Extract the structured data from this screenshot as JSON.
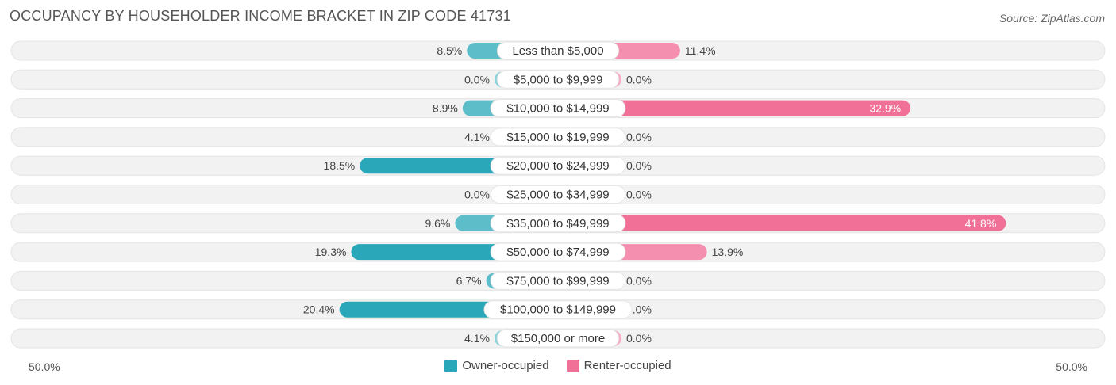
{
  "title": "OCCUPANCY BY HOUSEHOLDER INCOME BRACKET IN ZIP CODE 41731",
  "source": "Source: ZipAtlas.com",
  "colors": {
    "owner_strong": "#2aa7b8",
    "owner_light": "#8ed2da",
    "renter_strong": "#f07098",
    "renter_light": "#f6aec6",
    "track": "#f2f2f2"
  },
  "chart_data": {
    "type": "bar",
    "orientation": "horizontal-diverging",
    "categories": [
      "Less than $5,000",
      "$5,000 to $9,999",
      "$10,000 to $14,999",
      "$15,000 to $19,999",
      "$20,000 to $24,999",
      "$25,000 to $34,999",
      "$35,000 to $49,999",
      "$50,000 to $74,999",
      "$75,000 to $99,999",
      "$100,000 to $149,999",
      "$150,000 or more"
    ],
    "series": [
      {
        "name": "Owner-occupied",
        "values": [
          8.5,
          0.0,
          8.9,
          4.1,
          18.5,
          0.0,
          9.6,
          19.3,
          6.7,
          20.4,
          4.1
        ],
        "labels": [
          "8.5%",
          "0.0%",
          "8.9%",
          "4.1%",
          "18.5%",
          "0.0%",
          "9.6%",
          "19.3%",
          "6.7%",
          "20.4%",
          "4.1%"
        ]
      },
      {
        "name": "Renter-occupied",
        "values": [
          11.4,
          0.0,
          32.9,
          0.0,
          0.0,
          0.0,
          41.8,
          13.9,
          0.0,
          0.0,
          0.0
        ],
        "labels": [
          "11.4%",
          "0.0%",
          "32.9%",
          "0.0%",
          "0.0%",
          "0.0%",
          "41.8%",
          "13.9%",
          "0.0%",
          "0.0%",
          "0.0%"
        ]
      }
    ],
    "xlim": [
      -50,
      50
    ],
    "axis_left_label": "50.0%",
    "axis_right_label": "50.0%",
    "legend_position": "bottom-center",
    "grid": false
  }
}
